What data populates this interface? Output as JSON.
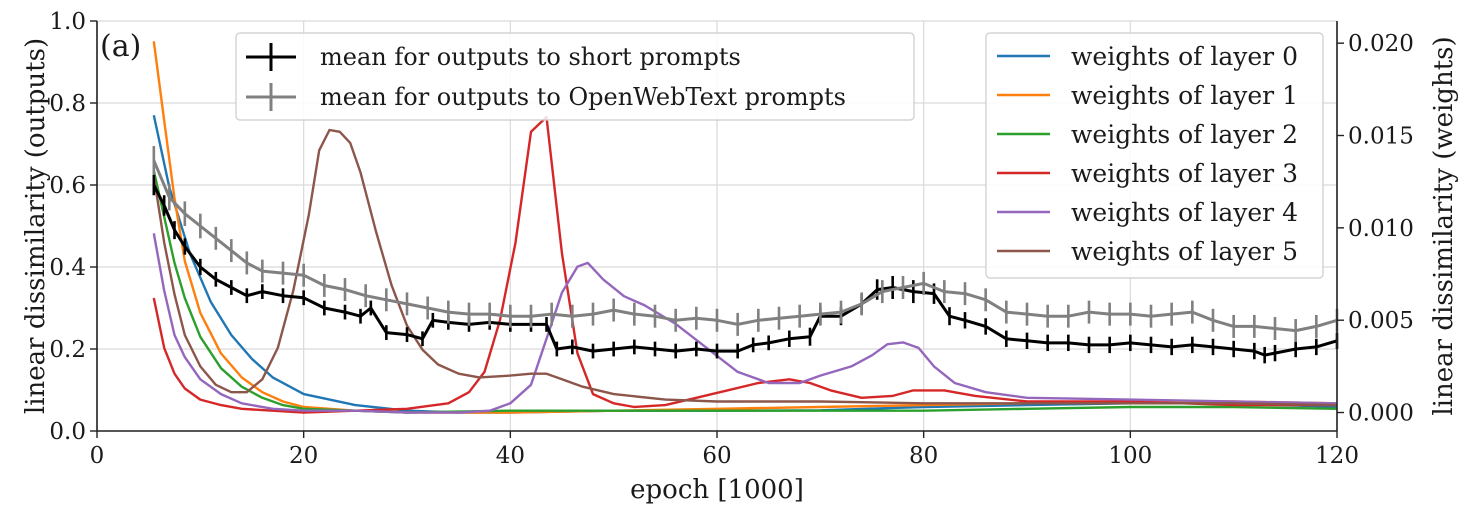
{
  "chart_data": {
    "type": "line",
    "panel_label": "(a)",
    "xlabel": "epoch [1000]",
    "ylabel_left": "linear dissimilarity (outputs)",
    "ylabel_right": "linear dissimilarity (weights)",
    "xlim": [
      0,
      120
    ],
    "ylim_left": [
      0.0,
      1.0
    ],
    "ylim_right": [
      -0.001,
      0.0212
    ],
    "x_ticks": [
      "0",
      "20",
      "40",
      "60",
      "80",
      "100",
      "120"
    ],
    "y_ticks_left": [
      "0.0",
      "0.2",
      "0.4",
      "0.6",
      "0.8",
      "1.0"
    ],
    "y_ticks_right": [
      "0.000",
      "0.005",
      "0.010",
      "0.015",
      "0.020"
    ],
    "grid": true,
    "legend_outputs_placement": "upper-center",
    "legend_weights_placement": "upper-right",
    "output_series": [
      {
        "name": "mean for outputs to short prompts",
        "axis": "left",
        "color": "#000000",
        "x": [
          5.5,
          6.5,
          7.5,
          8.5,
          10,
          11.5,
          13,
          14.5,
          16,
          18,
          20,
          22,
          24,
          25.5,
          26.5,
          28,
          30,
          31.5,
          32.5,
          34,
          36,
          38,
          40,
          42,
          43.5,
          44.5,
          46,
          48,
          50,
          52,
          54,
          56,
          58,
          60,
          62,
          63.5,
          65,
          67,
          69,
          70,
          72,
          74,
          75.5,
          77,
          79,
          81,
          82.5,
          84,
          86,
          88,
          90,
          92,
          94,
          96,
          98,
          100,
          102,
          104,
          106,
          108,
          110,
          112,
          113,
          114,
          116,
          118,
          120
        ],
        "y": [
          0.6,
          0.55,
          0.49,
          0.45,
          0.4,
          0.37,
          0.35,
          0.33,
          0.34,
          0.33,
          0.325,
          0.3,
          0.29,
          0.28,
          0.3,
          0.24,
          0.235,
          0.225,
          0.27,
          0.265,
          0.26,
          0.265,
          0.26,
          0.26,
          0.26,
          0.2,
          0.205,
          0.195,
          0.2,
          0.205,
          0.2,
          0.195,
          0.2,
          0.195,
          0.195,
          0.21,
          0.215,
          0.225,
          0.23,
          0.28,
          0.28,
          0.31,
          0.345,
          0.35,
          0.34,
          0.335,
          0.28,
          0.27,
          0.255,
          0.225,
          0.22,
          0.215,
          0.215,
          0.21,
          0.21,
          0.215,
          0.21,
          0.205,
          0.21,
          0.205,
          0.2,
          0.195,
          0.185,
          0.19,
          0.2,
          0.205,
          0.22
        ],
        "err": [
          0.025,
          0.025,
          0.022,
          0.02,
          0.02,
          0.018,
          0.018,
          0.018,
          0.018,
          0.018,
          0.018,
          0.018,
          0.018,
          0.018,
          0.018,
          0.018,
          0.018,
          0.018,
          0.018,
          0.018,
          0.018,
          0.018,
          0.018,
          0.018,
          0.018,
          0.018,
          0.018,
          0.018,
          0.018,
          0.018,
          0.018,
          0.018,
          0.018,
          0.018,
          0.018,
          0.018,
          0.018,
          0.02,
          0.022,
          0.022,
          0.022,
          0.025,
          0.025,
          0.028,
          0.028,
          0.025,
          0.022,
          0.02,
          0.02,
          0.02,
          0.02,
          0.02,
          0.02,
          0.02,
          0.02,
          0.02,
          0.02,
          0.02,
          0.02,
          0.02,
          0.02,
          0.02,
          0.02,
          0.02,
          0.02,
          0.02,
          0.02
        ]
      },
      {
        "name": "mean for outputs to OpenWebText prompts",
        "axis": "left",
        "color": "#808080",
        "x": [
          5.5,
          7,
          8.5,
          10,
          11.5,
          13,
          14.5,
          16,
          18,
          20,
          22,
          24,
          26,
          28,
          30,
          32,
          34,
          36,
          38,
          40,
          42,
          44,
          46,
          48,
          50,
          52,
          54,
          56,
          58,
          60,
          62,
          64,
          66,
          68,
          70,
          72,
          74,
          76,
          78,
          80,
          82,
          84,
          86,
          88,
          90,
          92,
          94,
          96,
          98,
          100,
          102,
          104,
          106,
          108,
          110,
          112,
          114,
          116,
          118,
          120
        ],
        "y": [
          0.66,
          0.57,
          0.53,
          0.5,
          0.47,
          0.44,
          0.41,
          0.39,
          0.385,
          0.38,
          0.355,
          0.345,
          0.33,
          0.32,
          0.31,
          0.3,
          0.29,
          0.285,
          0.285,
          0.28,
          0.28,
          0.285,
          0.28,
          0.285,
          0.295,
          0.285,
          0.28,
          0.27,
          0.275,
          0.27,
          0.26,
          0.27,
          0.275,
          0.28,
          0.285,
          0.29,
          0.31,
          0.34,
          0.35,
          0.36,
          0.34,
          0.335,
          0.32,
          0.29,
          0.285,
          0.28,
          0.28,
          0.29,
          0.285,
          0.285,
          0.28,
          0.285,
          0.29,
          0.27,
          0.255,
          0.255,
          0.25,
          0.245,
          0.255,
          0.27
        ],
        "err": [
          0.035,
          0.032,
          0.03,
          0.03,
          0.028,
          0.028,
          0.028,
          0.028,
          0.028,
          0.028,
          0.028,
          0.028,
          0.028,
          0.028,
          0.028,
          0.028,
          0.028,
          0.028,
          0.028,
          0.028,
          0.028,
          0.028,
          0.028,
          0.028,
          0.028,
          0.028,
          0.028,
          0.028,
          0.028,
          0.028,
          0.028,
          0.028,
          0.028,
          0.028,
          0.028,
          0.028,
          0.028,
          0.028,
          0.028,
          0.028,
          0.028,
          0.028,
          0.028,
          0.028,
          0.028,
          0.028,
          0.028,
          0.028,
          0.028,
          0.028,
          0.028,
          0.028,
          0.028,
          0.028,
          0.028,
          0.028,
          0.028,
          0.028,
          0.028,
          0.028
        ]
      }
    ],
    "weight_series": [
      {
        "name": "weights of layer 0",
        "axis": "right",
        "color": "#1f77b4",
        "x": [
          5.5,
          7,
          9,
          11,
          13,
          15,
          17,
          20,
          25,
          30,
          35,
          40,
          50,
          60,
          70,
          80,
          90,
          100,
          110,
          120
        ],
        "y": [
          0.0161,
          0.0122,
          0.0086,
          0.006,
          0.0042,
          0.0029,
          0.0019,
          0.001,
          0.0004,
          0.0001,
          0.0,
          0.0,
          0.0001,
          0.0001,
          0.00012,
          0.0003,
          0.0004,
          0.0005,
          0.0005,
          0.0003
        ]
      },
      {
        "name": "weights of layer 1",
        "axis": "right",
        "color": "#ff7f0e",
        "x": [
          5.5,
          6.5,
          7.5,
          8.5,
          10,
          12,
          14,
          16,
          18,
          20,
          25,
          30,
          40,
          50,
          60,
          70,
          80,
          90,
          100,
          110,
          120
        ],
        "y": [
          0.0201,
          0.0158,
          0.0116,
          0.0082,
          0.0054,
          0.0032,
          0.0019,
          0.0011,
          0.0006,
          0.0003,
          0.0001,
          0.0,
          0.0,
          0.0001,
          0.0002,
          0.0003,
          0.0004,
          0.0005,
          0.0006,
          0.0006,
          0.0005
        ]
      },
      {
        "name": "weights of layer 2",
        "axis": "right",
        "color": "#2ca02c",
        "x": [
          5.5,
          6.5,
          7.5,
          8.5,
          10,
          12,
          14,
          16,
          18,
          20,
          25,
          30,
          40,
          50,
          60,
          70,
          80,
          90,
          100,
          110,
          120
        ],
        "y": [
          0.0131,
          0.0106,
          0.0081,
          0.0062,
          0.0041,
          0.0024,
          0.0014,
          0.0008,
          0.0004,
          0.0002,
          0.0001,
          0.0,
          0.0001,
          0.0001,
          0.0001,
          0.0001,
          0.0001,
          0.0002,
          0.0003,
          0.0003,
          0.0002
        ]
      },
      {
        "name": "weights of layer 3",
        "axis": "right",
        "color": "#d62728",
        "x": [
          5.5,
          6.5,
          7.5,
          8.5,
          10,
          12,
          14,
          17,
          20,
          25,
          30,
          34,
          36,
          37.5,
          39,
          40.5,
          42,
          43.5,
          45,
          46.5,
          48,
          50,
          52,
          55,
          58,
          61,
          64,
          67,
          69,
          71,
          74,
          77,
          79,
          82,
          85,
          90,
          100,
          110,
          120
        ],
        "y": [
          0.0062,
          0.0035,
          0.0021,
          0.0013,
          0.0007,
          0.0004,
          0.0002,
          0.0001,
          0.0,
          0.0001,
          0.0002,
          0.0005,
          0.0011,
          0.0022,
          0.005,
          0.0092,
          0.0152,
          0.016,
          0.0086,
          0.0032,
          0.001,
          0.0005,
          0.0003,
          0.0004,
          0.0008,
          0.0012,
          0.0016,
          0.0018,
          0.0016,
          0.0012,
          0.0008,
          0.0009,
          0.0012,
          0.0012,
          0.0009,
          0.0006,
          0.0006,
          0.0004,
          0.0004
        ]
      },
      {
        "name": "weights of layer 4",
        "axis": "right",
        "color": "#9467bd",
        "x": [
          5.5,
          6.5,
          7.5,
          8.5,
          10,
          12,
          14,
          17,
          20,
          25,
          30,
          35,
          38,
          40,
          42,
          43.5,
          45,
          46.5,
          47.5,
          49,
          51,
          53,
          56,
          59,
          62,
          65,
          68,
          70,
          73,
          75,
          76.5,
          78,
          79.5,
          81,
          83,
          86,
          90,
          100,
          110,
          120
        ],
        "y": [
          0.0097,
          0.0066,
          0.0042,
          0.003,
          0.0018,
          0.001,
          0.0005,
          0.0002,
          0.0001,
          0.0001,
          0.0,
          0.0,
          0.0001,
          0.0005,
          0.0015,
          0.004,
          0.0065,
          0.0079,
          0.0081,
          0.0072,
          0.0063,
          0.0058,
          0.0048,
          0.0035,
          0.0022,
          0.0016,
          0.0016,
          0.002,
          0.0025,
          0.0031,
          0.0037,
          0.0038,
          0.0035,
          0.0025,
          0.0016,
          0.0011,
          0.0008,
          0.0007,
          0.0006,
          0.0005
        ]
      },
      {
        "name": "weights of layer 5",
        "axis": "right",
        "color": "#8c564b",
        "x": [
          5.5,
          6.5,
          7.5,
          8.5,
          10,
          11.5,
          13,
          14.5,
          16,
          17.5,
          19,
          20.5,
          21.5,
          22.5,
          23.5,
          24.5,
          25.5,
          27,
          28.5,
          30,
          31.5,
          33,
          35,
          37,
          40,
          42,
          43.5,
          45,
          47,
          50,
          55,
          60,
          70,
          80,
          90,
          100,
          110,
          120
        ],
        "y": [
          0.0128,
          0.0092,
          0.0064,
          0.0042,
          0.0025,
          0.0015,
          0.0011,
          0.0011,
          0.0018,
          0.0035,
          0.0066,
          0.0107,
          0.0142,
          0.0153,
          0.0152,
          0.0146,
          0.013,
          0.0098,
          0.0069,
          0.0047,
          0.0034,
          0.0026,
          0.0021,
          0.0019,
          0.002,
          0.0021,
          0.0021,
          0.0018,
          0.0014,
          0.001,
          0.0007,
          0.0006,
          0.0006,
          0.0005,
          0.0005,
          0.0005,
          0.0005,
          0.0004
        ]
      }
    ]
  }
}
